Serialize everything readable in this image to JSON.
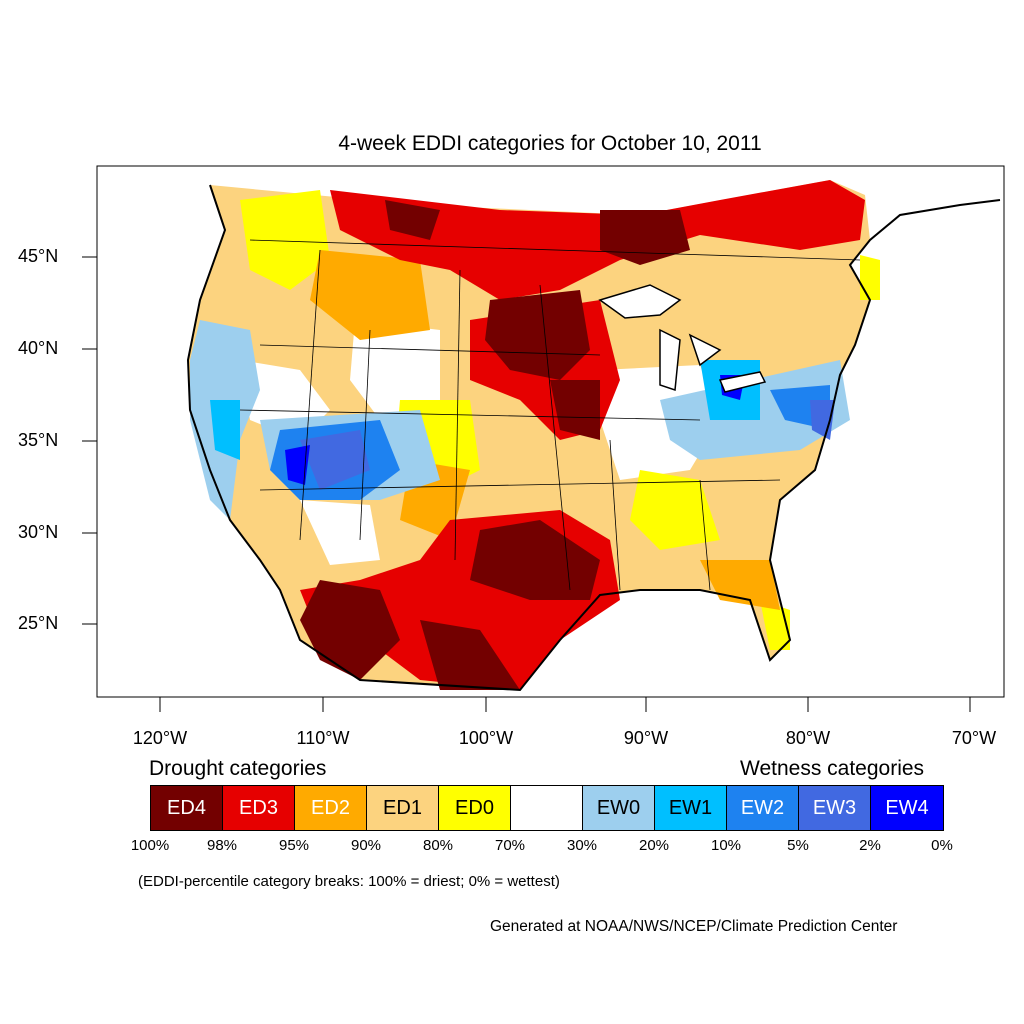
{
  "title": "4-week EDDI categories for October 10, 2011",
  "lat_labels": [
    "45°N",
    "40°N",
    "35°N",
    "30°N",
    "25°N"
  ],
  "lon_labels": [
    "120°W",
    "110°W",
    "100°W",
    "90°W",
    "80°W",
    "70°W"
  ],
  "legend": {
    "drought_heading": "Drought categories",
    "wetness_heading": "Wetness categories",
    "categories": [
      {
        "label": "ED4",
        "color": "#730000",
        "text_color": "#ffffff"
      },
      {
        "label": "ED3",
        "color": "#e60000",
        "text_color": "#ffffff"
      },
      {
        "label": "ED2",
        "color": "#ffaa00",
        "text_color": "#ffffff"
      },
      {
        "label": "ED1",
        "color": "#fcd37f",
        "text_color": "#000000"
      },
      {
        "label": "ED0",
        "color": "#ffff00",
        "text_color": "#000000"
      },
      {
        "label": "",
        "color": "#ffffff",
        "text_color": "#000000"
      },
      {
        "label": "EW0",
        "color": "#9dcfee",
        "text_color": "#000000"
      },
      {
        "label": "EW1",
        "color": "#00bfff",
        "text_color": "#000000"
      },
      {
        "label": "EW2",
        "color": "#1e82f0",
        "text_color": "#ffffff"
      },
      {
        "label": "EW3",
        "color": "#4169e1",
        "text_color": "#ffffff"
      },
      {
        "label": "EW4",
        "color": "#0000ff",
        "text_color": "#ffffff"
      }
    ],
    "percentiles": [
      "100%",
      "98%",
      "95%",
      "90%",
      "80%",
      "70%",
      "30%",
      "20%",
      "10%",
      "5%",
      "2%",
      "0%"
    ]
  },
  "note": "(EDDI-percentile category breaks: 100% = driest; 0% = wettest)",
  "credit": "Generated at NOAA/NWS/NCEP/Climate Prediction Center"
}
